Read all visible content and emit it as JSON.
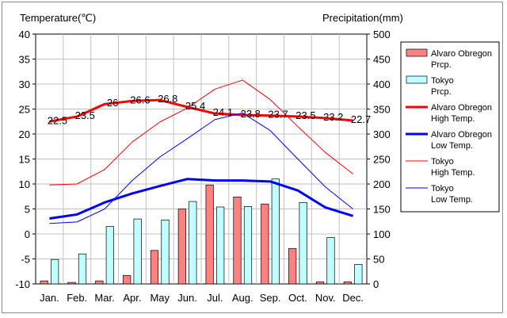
{
  "chart_data": {
    "type": "bar+line",
    "left_axis": {
      "label": "Temperature(℃)",
      "min": -10,
      "max": 40,
      "step": 5,
      "ticks": [
        "40",
        "35",
        "30",
        "25",
        "20",
        "15",
        "10",
        "5",
        "0",
        "-5",
        "-10"
      ]
    },
    "right_axis": {
      "label": "Precipitation(mm)",
      "min": 0,
      "max": 500,
      "step": 50,
      "ticks": [
        "500",
        "450",
        "400",
        "350",
        "300",
        "250",
        "200",
        "150",
        "100",
        "50",
        "0"
      ]
    },
    "categories": [
      "Jan.",
      "Feb.",
      "Mar.",
      "Apr.",
      "May",
      "Jun.",
      "Jul.",
      "Aug.",
      "Sep.",
      "Oct.",
      "Nov.",
      "Dec."
    ],
    "bar_series": [
      {
        "name": "Alvaro Obregon Prcp.",
        "legend_lines": [
          "Alvaro Obregon",
          "Prcp."
        ],
        "color": "#ff8080",
        "axis": "right",
        "values": [
          6,
          3,
          6,
          17,
          67,
          150,
          198,
          174,
          160,
          71,
          4,
          4
        ]
      },
      {
        "name": "Tokyo Prcp.",
        "legend_lines": [
          "Tokyo",
          "Prcp."
        ],
        "color": "#c0ffff",
        "axis": "right",
        "values": [
          49,
          60,
          115,
          130,
          128,
          165,
          154,
          155,
          210,
          163,
          93,
          39
        ]
      }
    ],
    "line_series": [
      {
        "name": "Alvaro Obregon High Temp.",
        "legend_lines": [
          "Alvaro Obregon",
          "High Temp."
        ],
        "color": "#ff0000",
        "width": 3,
        "axis": "left",
        "values": [
          22.5,
          23.5,
          26,
          26.6,
          26.8,
          25.4,
          24.1,
          23.8,
          23.7,
          23.5,
          23.2,
          22.7
        ],
        "labels": [
          "22.5",
          "23.5",
          "26",
          "26.6",
          "26.8",
          "25.4",
          "24.1",
          "23.8",
          "23.7",
          "23.5",
          "23.2",
          "22.7"
        ]
      },
      {
        "name": "Alvaro Obregon Low Temp.",
        "legend_lines": [
          "Alvaro Obregon",
          "Low Temp."
        ],
        "color": "#0000ff",
        "width": 3,
        "axis": "left",
        "values": [
          3.1,
          3.9,
          6.3,
          8.1,
          9.6,
          11.0,
          10.7,
          10.7,
          10.5,
          8.7,
          5.3,
          3.6
        ]
      },
      {
        "name": "Tokyo High Temp.",
        "legend_lines": [
          "Tokyo",
          "High Temp."
        ],
        "color": "#ff0000",
        "width": 1,
        "axis": "left",
        "values": [
          9.8,
          10.0,
          12.9,
          18.4,
          22.4,
          25.2,
          29.0,
          30.8,
          26.9,
          21.5,
          16.3,
          12.0
        ]
      },
      {
        "name": "Tokyo Low Temp.",
        "legend_lines": [
          "Tokyo",
          "Low Temp."
        ],
        "color": "#0000ff",
        "width": 1,
        "axis": "left",
        "values": [
          2.1,
          2.4,
          5.0,
          10.7,
          15.4,
          19.1,
          22.9,
          24.2,
          20.7,
          15.0,
          9.4,
          5.0
        ]
      }
    ],
    "grid": true,
    "legend_position": "right"
  }
}
